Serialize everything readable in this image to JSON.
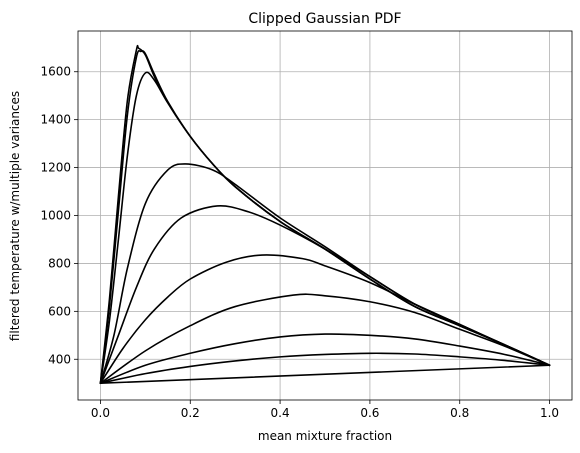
{
  "chart_data": {
    "type": "line",
    "title": "Clipped Gaussian PDF",
    "xlabel": "mean mixture fraction",
    "ylabel": "filtered temperature w/multiple variances",
    "xlim": [
      -0.05,
      1.05
    ],
    "ylim": [
      230,
      1770
    ],
    "xticks": [
      0.0,
      0.2,
      0.4,
      0.6,
      0.8,
      1.0
    ],
    "xtick_labels": [
      "0.0",
      "0.2",
      "0.4",
      "0.6",
      "0.8",
      "1.0"
    ],
    "yticks": [
      400,
      600,
      800,
      1000,
      1200,
      1400,
      1600
    ],
    "ytick_labels": [
      "400",
      "600",
      "800",
      "1000",
      "1200",
      "1400",
      "1600"
    ],
    "grid": true,
    "line_color": "#000000",
    "series": [
      {
        "x": [
          0.0,
          0.02,
          0.04,
          0.06,
          0.08,
          0.085,
          0.1,
          0.12,
          0.15,
          0.2,
          0.25,
          0.3,
          0.4,
          0.5,
          0.6,
          0.7,
          0.8,
          0.9,
          1.0
        ],
        "values": [
          300,
          650,
          1080,
          1480,
          1690,
          1698,
          1670,
          1580,
          1470,
          1330,
          1215,
          1120,
          975,
          860,
          735,
          620,
          540,
          460,
          375
        ]
      },
      {
        "x": [
          0.0,
          0.02,
          0.04,
          0.06,
          0.08,
          0.09,
          0.1,
          0.12,
          0.15,
          0.2,
          0.25,
          0.3,
          0.4,
          0.5,
          0.6,
          0.7,
          0.8,
          0.9,
          1.0
        ],
        "values": [
          300,
          620,
          1020,
          1420,
          1660,
          1685,
          1675,
          1590,
          1475,
          1330,
          1215,
          1120,
          975,
          860,
          735,
          620,
          540,
          460,
          375
        ]
      },
      {
        "x": [
          0.0,
          0.02,
          0.04,
          0.06,
          0.08,
          0.1,
          0.12,
          0.15,
          0.2,
          0.25,
          0.3,
          0.4,
          0.5,
          0.6,
          0.7,
          0.8,
          0.9,
          1.0
        ],
        "values": [
          300,
          560,
          900,
          1250,
          1500,
          1595,
          1565,
          1470,
          1330,
          1215,
          1120,
          975,
          860,
          735,
          620,
          540,
          460,
          375
        ]
      },
      {
        "x": [
          0.0,
          0.03,
          0.06,
          0.1,
          0.15,
          0.19,
          0.25,
          0.3,
          0.4,
          0.5,
          0.6,
          0.7,
          0.8,
          0.9,
          1.0
        ],
        "values": [
          300,
          500,
          780,
          1050,
          1190,
          1215,
          1190,
          1130,
          990,
          870,
          745,
          630,
          545,
          460,
          375
        ]
      },
      {
        "x": [
          0.0,
          0.04,
          0.08,
          0.12,
          0.18,
          0.26,
          0.33,
          0.4,
          0.5,
          0.6,
          0.7,
          0.8,
          0.9,
          1.0
        ],
        "values": [
          300,
          500,
          700,
          860,
          990,
          1040,
          1015,
          960,
          860,
          745,
          630,
          545,
          460,
          375
        ]
      },
      {
        "x": [
          0.0,
          0.05,
          0.1,
          0.15,
          0.2,
          0.28,
          0.36,
          0.45,
          0.5,
          0.6,
          0.7,
          0.8,
          0.9,
          1.0
        ],
        "values": [
          300,
          445,
          565,
          660,
          735,
          805,
          835,
          820,
          790,
          720,
          630,
          545,
          460,
          375
        ]
      },
      {
        "x": [
          0.0,
          0.1,
          0.2,
          0.3,
          0.43,
          0.5,
          0.6,
          0.7,
          0.8,
          0.9,
          1.0
        ],
        "values": [
          300,
          435,
          540,
          620,
          668,
          665,
          640,
          595,
          525,
          455,
          375
        ]
      },
      {
        "x": [
          0.0,
          0.1,
          0.2,
          0.3,
          0.4,
          0.5,
          0.6,
          0.7,
          0.8,
          0.9,
          1.0
        ],
        "values": [
          300,
          375,
          425,
          465,
          493,
          505,
          500,
          485,
          455,
          420,
          375
        ]
      },
      {
        "x": [
          0.0,
          0.1,
          0.2,
          0.3,
          0.4,
          0.5,
          0.6,
          0.7,
          0.8,
          0.9,
          1.0
        ],
        "values": [
          300,
          340,
          370,
          393,
          410,
          420,
          425,
          422,
          410,
          395,
          375
        ]
      },
      {
        "x": [
          0.0,
          1.0
        ],
        "values": [
          300,
          375
        ]
      }
    ]
  }
}
